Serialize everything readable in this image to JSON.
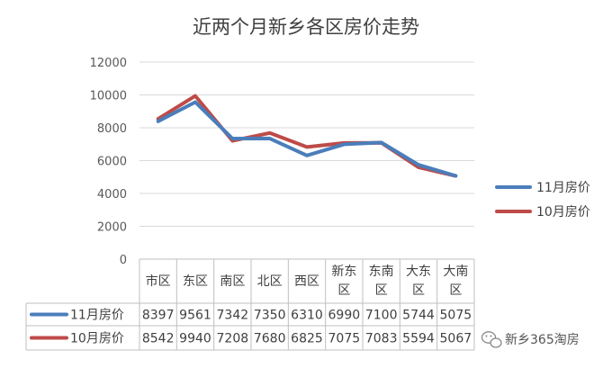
{
  "chart_data": {
    "type": "line",
    "title": "近两个月新乡各区房价走势",
    "categories": [
      [
        "市区"
      ],
      [
        "东区"
      ],
      [
        "南区"
      ],
      [
        "北区"
      ],
      [
        "西区"
      ],
      [
        "新东",
        "区"
      ],
      [
        "东南",
        "区"
      ],
      [
        "大东",
        "区"
      ],
      [
        "大南",
        "区"
      ]
    ],
    "series": [
      {
        "name": "11月房价",
        "color": "#4a7ebb",
        "values": [
          8397,
          9561,
          7342,
          7350,
          6310,
          6990,
          7100,
          5744,
          5075
        ]
      },
      {
        "name": "10月房价",
        "color": "#be4b48",
        "values": [
          8542,
          9940,
          7208,
          7680,
          6825,
          7075,
          7083,
          5594,
          5067
        ]
      }
    ],
    "ylim": [
      0,
      12000
    ],
    "yticks": [
      0,
      2000,
      4000,
      6000,
      8000,
      10000,
      12000
    ],
    "grid": true,
    "legend": "right",
    "data_table": true
  },
  "watermark": {
    "text": "新乡365淘房",
    "icon": "wechat-icon"
  }
}
